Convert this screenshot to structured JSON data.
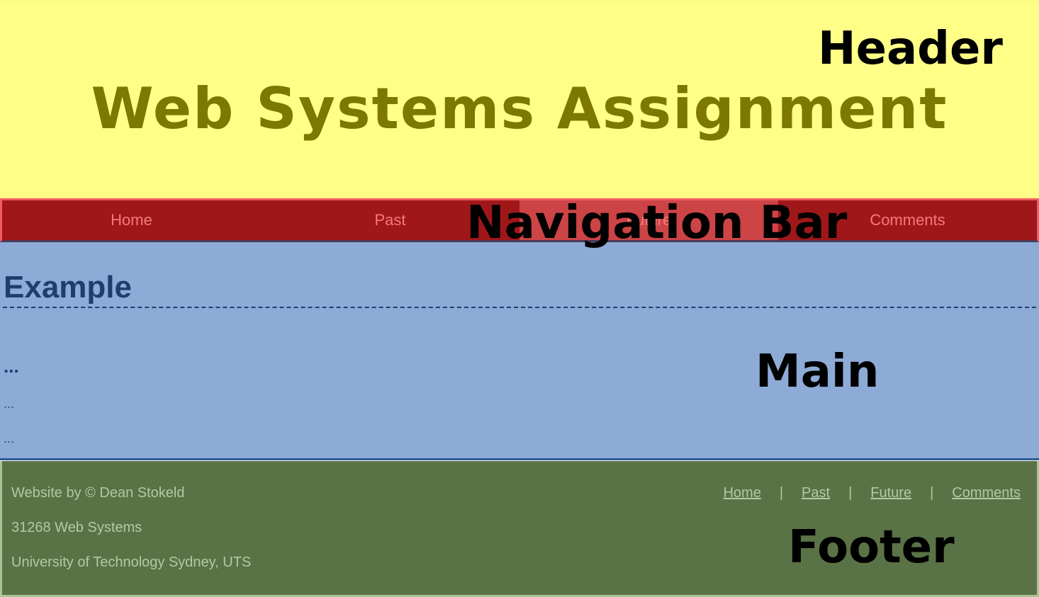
{
  "header": {
    "title": "Web Systems Assignment"
  },
  "nav": {
    "items": [
      {
        "label": "Home"
      },
      {
        "label": "Past"
      },
      {
        "label": "Future"
      },
      {
        "label": "Comments"
      }
    ],
    "active": "Future"
  },
  "main": {
    "heading": "Example",
    "subheading": "...",
    "paragraphs": [
      "...",
      "..."
    ]
  },
  "footer": {
    "credit": "Website by © Dean Stokeld",
    "course": "31268 Web Systems",
    "university": "University of Technology Sydney, UTS",
    "links": [
      {
        "label": "Home"
      },
      {
        "label": "Past"
      },
      {
        "label": "Future"
      },
      {
        "label": "Comments"
      }
    ],
    "separator": "|"
  },
  "annotations": {
    "header": "Header",
    "nav": "Navigation Bar",
    "main": "Main",
    "footer": "Footer"
  },
  "colors": {
    "header_bg": "#ffff88",
    "title_text": "#7c7800",
    "nav_bg": "#a01719",
    "nav_active_bg": "#cd4446",
    "nav_text": "#f37a7a",
    "main_bg": "#8eabd7",
    "main_text": "#1f3e6e",
    "footer_bg": "#5a7346",
    "footer_text": "#b2c9a2"
  }
}
